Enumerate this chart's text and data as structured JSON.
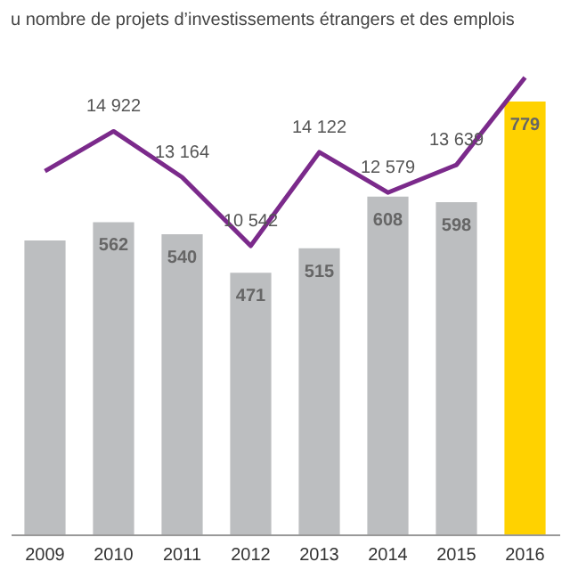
{
  "chart_data": {
    "type": "bar",
    "title": "u nombre de projets d’investissements étrangers et des emplois",
    "categories": [
      "2009",
      "2010",
      "2011",
      "2012",
      "2013",
      "2014",
      "2015",
      "2016"
    ],
    "series": [
      {
        "colors": [
          "#bcbec0",
          "#bcbec0",
          "#bcbec0",
          "#bcbec0",
          "#bcbec0",
          "#bcbec0",
          "#bcbec0",
          "#ffd200"
        ],
        "values": [
          529,
          562,
          540,
          471,
          515,
          608,
          598,
          779
        ],
        "value_labels": [
          null,
          "562",
          "540",
          "471",
          "515",
          "608",
          "598",
          "779"
        ]
      },
      {
        "type": "line",
        "axis": "y2",
        "color": "#7b2a8b",
        "values": [
          13400,
          14922,
          13164,
          10542,
          14122,
          12579,
          13639,
          16980
        ],
        "value_labels": [
          null,
          "14 922",
          "13 164",
          "10 542",
          "14 122",
          "12 579",
          "13 639",
          null
        ]
      }
    ],
    "tick_labels": "x",
    "marker": "none",
    "line_style": "solid"
  }
}
